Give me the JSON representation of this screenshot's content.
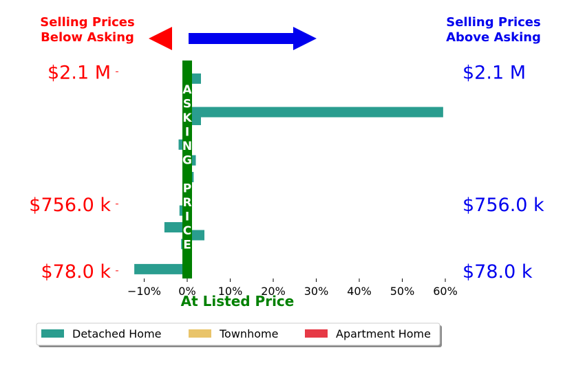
{
  "header": {
    "below_line1": "Selling Prices",
    "below_line2": "Below Asking",
    "above_line1": "Selling Prices",
    "above_line2": "Above Asking",
    "below_color": "#ff0000",
    "above_color": "#0000ee"
  },
  "chart_data": {
    "type": "bar",
    "orientation": "horizontal",
    "x_ticks": [
      "−10%",
      "0%",
      "10%",
      "20%",
      "30%",
      "40%",
      "50%",
      "60%"
    ],
    "x_tick_values": [
      -10,
      0,
      10,
      20,
      30,
      40,
      50,
      60
    ],
    "xlim": [
      -15,
      60
    ],
    "ylim": [
      0,
      2200
    ],
    "xlabel": "At Listed Price",
    "xlabel_color": "#008000",
    "y_price_ticks": [
      {
        "value": 2100,
        "label": "$2.1 M"
      },
      {
        "value": 756,
        "label": "$756.0 k"
      },
      {
        "value": 78,
        "label": "$78.0 k"
      }
    ],
    "asking_bar_text": "ASKING PRICE",
    "asking_bar_color": "#008000",
    "series": [
      {
        "name": "Detached Home",
        "color": "#2a9d8f",
        "points": [
          {
            "price": 2030,
            "pct": 3.2
          },
          {
            "price": 1690,
            "pct": 59.5
          },
          {
            "price": 1610,
            "pct": 3.2
          },
          {
            "price": 1360,
            "pct": -2.0
          },
          {
            "price": 1200,
            "pct": 2.0
          },
          {
            "price": 1030,
            "pct": 1.5
          },
          {
            "price": 860,
            "pct": 1.0
          },
          {
            "price": 690,
            "pct": -1.8
          },
          {
            "price": 520,
            "pct": -5.3
          },
          {
            "price": 440,
            "pct": 4.0
          },
          {
            "price": 350,
            "pct": -1.4
          },
          {
            "price": 95,
            "pct": -12.3
          }
        ]
      },
      {
        "name": "Townhome",
        "color": "#e9c46a",
        "points": [
          {
            "price": 240,
            "pct": -1.0
          }
        ]
      },
      {
        "name": "Apartment Home",
        "color": "#e63946",
        "points": []
      }
    ],
    "legend_position": "bottom-left",
    "grid": false
  }
}
